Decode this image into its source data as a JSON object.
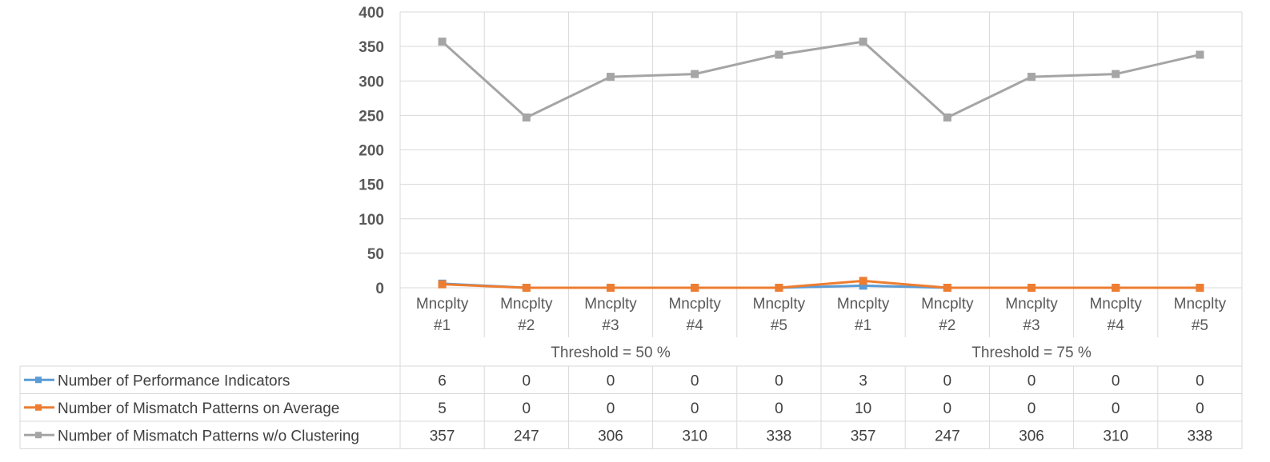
{
  "chart_data": {
    "type": "line",
    "categories": [
      "Mncplty #1",
      "Mncplty #2",
      "Mncplty #3",
      "Mncplty #4",
      "Mncplty #5",
      "Mncplty #1",
      "Mncplty #2",
      "Mncplty #3",
      "Mncplty #4",
      "Mncplty #5"
    ],
    "category_lines": [
      [
        "Mncplty",
        "#1"
      ],
      [
        "Mncplty",
        "#2"
      ],
      [
        "Mncplty",
        "#3"
      ],
      [
        "Mncplty",
        "#4"
      ],
      [
        "Mncplty",
        "#5"
      ],
      [
        "Mncplty",
        "#1"
      ],
      [
        "Mncplty",
        "#2"
      ],
      [
        "Mncplty",
        "#3"
      ],
      [
        "Mncplty",
        "#4"
      ],
      [
        "Mncplty",
        "#5"
      ]
    ],
    "groups": [
      {
        "label": "Threshold = 50 %",
        "count": 5
      },
      {
        "label": "Threshold = 75 %",
        "count": 5
      }
    ],
    "series": [
      {
        "name": "Number of Performance Indicators",
        "color": "#5B9BD5",
        "values": [
          6,
          0,
          0,
          0,
          0,
          3,
          0,
          0,
          0,
          0
        ]
      },
      {
        "name": "Number of Mismatch Patterns on Average",
        "color": "#ED7D31",
        "values": [
          5,
          0,
          0,
          0,
          0,
          10,
          0,
          0,
          0,
          0
        ]
      },
      {
        "name": "Number of Mismatch Patterns w/o Clustering",
        "color": "#A5A5A5",
        "values": [
          357,
          247,
          306,
          310,
          338,
          357,
          247,
          306,
          310,
          338
        ]
      }
    ],
    "ylim": [
      0,
      400
    ],
    "yticks": [
      0,
      50,
      100,
      150,
      200,
      250,
      300,
      350,
      400
    ],
    "grid": true,
    "legend": "data-table"
  }
}
